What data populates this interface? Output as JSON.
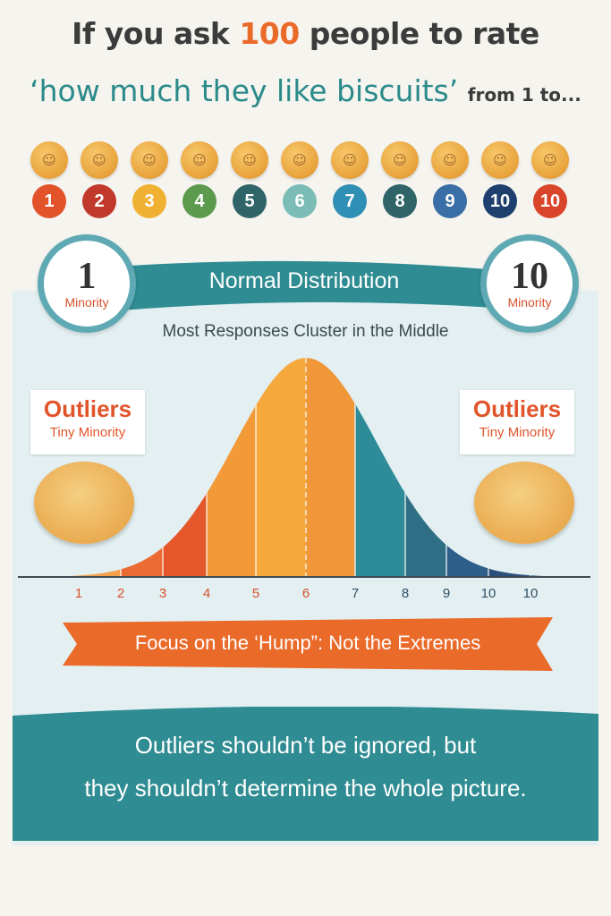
{
  "header": {
    "line1_pre": "If you ask",
    "line1_highlight": "100",
    "line1_post": "people to rate",
    "line2_main": "‘how much they like biscuits’",
    "line2_small": "from 1 to..."
  },
  "scale": [
    {
      "label": "1",
      "color": "#e2532a"
    },
    {
      "label": "2",
      "color": "#c0392b"
    },
    {
      "label": "3",
      "color": "#f0b132"
    },
    {
      "label": "4",
      "color": "#5c9a4e"
    },
    {
      "label": "5",
      "color": "#2f6468"
    },
    {
      "label": "6",
      "color": "#7cbcb6"
    },
    {
      "label": "7",
      "color": "#2f8fb5"
    },
    {
      "label": "8",
      "color": "#2f6468"
    },
    {
      "label": "9",
      "color": "#3a6ea6"
    },
    {
      "label": "10",
      "color": "#1f3f6e"
    },
    {
      "label": "10",
      "color": "#d9452a"
    }
  ],
  "ribbon": {
    "label": "Normal Distribution"
  },
  "left_circle": {
    "number": "1",
    "label": "Minority"
  },
  "right_circle": {
    "number": "10",
    "label": "Minority"
  },
  "subtitle": "Most Responses Cluster in the Middle",
  "outliers_left": {
    "title": "Outliers",
    "subtitle": "Tiny Minority"
  },
  "outliers_right": {
    "title": "Outliers",
    "subtitle": "Tiny Minority"
  },
  "chart_data": {
    "type": "area",
    "x_ticks": [
      "1",
      "2",
      "3",
      "4",
      "5",
      "6",
      "7",
      "8",
      "9",
      "10",
      "10"
    ],
    "segment_colors": [
      "#f4a04a",
      "#ec6a34",
      "#e5572a",
      "#f29a38",
      "#f5a93d",
      "#f0973a",
      "#2d8c98",
      "#2f6f86",
      "#2d5f8a",
      "#2a4f78",
      "#2a4f78"
    ],
    "axis_color": "#3d4b54"
  },
  "focus": {
    "label": "Focus on the ‘Hump”: Not the Extremes"
  },
  "bottom": {
    "line1": "Outliers shouldn’t be ignored, but",
    "line2": "they shouldn’t determine the whole picture."
  },
  "colors": {
    "teal": "#2f8c92",
    "orange": "#ea6a2a"
  }
}
